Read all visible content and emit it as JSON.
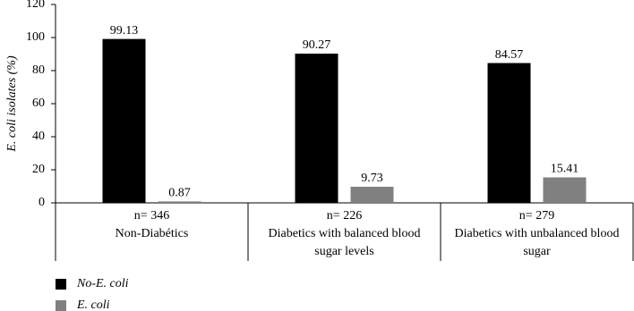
{
  "chart_data": {
    "type": "bar",
    "ylabel": "E. coli isolates (%)",
    "sample_sizes": [
      "n= 346",
      "n= 226",
      "n= 279"
    ],
    "categories": [
      "Non-Diabétics",
      "Diabetics with balanced blood sugar levels",
      "Diabetics with unbalanced blood sugar"
    ],
    "series": [
      {
        "name": "No-E. coli",
        "color": "#000000",
        "values": [
          99.13,
          90.27,
          84.57
        ]
      },
      {
        "name": "E. coli",
        "color": "#808080",
        "values": [
          0.87,
          9.73,
          15.41
        ]
      }
    ],
    "ylim": [
      0,
      120
    ],
    "yticks": [
      0,
      20,
      40,
      60,
      80,
      100,
      120
    ],
    "legend": "bottom-left"
  }
}
